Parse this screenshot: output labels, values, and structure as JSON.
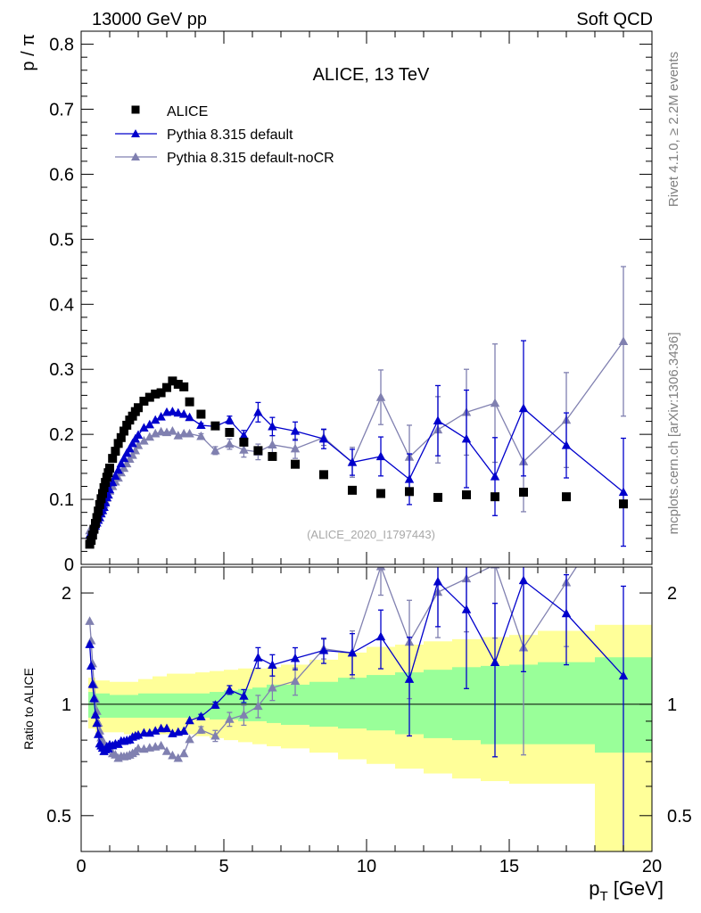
{
  "header": {
    "left": "13000 GeV pp",
    "right": "Soft QCD"
  },
  "side_text": {
    "rivet": "Rivet 4.1.0, ≥ 2.2M events",
    "mcplots": "mcplots.cern.ch [arXiv:1306.3436]"
  },
  "chart_data": {
    "type": "scatter",
    "title": "ALICE, 13 TeV",
    "reference_id": "(ALICE_2020_I1797443)",
    "ylabel": "p / π",
    "ratio_ylabel": "Ratio to ALICE",
    "xlabel": "p",
    "xlabel_sub": "T",
    "xlabel_unit": " [GeV]",
    "xlim": [
      0,
      20
    ],
    "ylim": [
      0,
      0.82
    ],
    "ratio_ylim": [
      0.4,
      2.35
    ],
    "ratio_log": true,
    "x_ticks": [
      {
        "v": 0,
        "label": "0"
      },
      {
        "v": 5,
        "label": "5"
      },
      {
        "v": 10,
        "label": "10"
      },
      {
        "v": 15,
        "label": "15"
      },
      {
        "v": 20,
        "label": "20"
      }
    ],
    "y_ticks": [
      {
        "v": 0,
        "label": "0"
      },
      {
        "v": 0.1,
        "label": "0.1"
      },
      {
        "v": 0.2,
        "label": "0.2"
      },
      {
        "v": 0.3,
        "label": "0.3"
      },
      {
        "v": 0.4,
        "label": "0.4"
      },
      {
        "v": 0.5,
        "label": "0.5"
      },
      {
        "v": 0.6,
        "label": "0.6"
      },
      {
        "v": 0.7,
        "label": "0.7"
      },
      {
        "v": 0.8,
        "label": "0.8"
      }
    ],
    "ratio_ticks": [
      {
        "v": 0.5,
        "label": "0.5"
      },
      {
        "v": 1,
        "label": "1"
      },
      {
        "v": 2,
        "label": "2"
      }
    ],
    "legend": [
      "ALICE",
      "Pythia 8.315 default",
      "Pythia 8.315 default-noCR"
    ],
    "colors": {
      "data": "#000000",
      "default": "#0000cc",
      "nocr": "#8080b0",
      "band_inner": "#99ff99",
      "band_outer": "#ffff99"
    },
    "x": [
      0.3,
      0.35,
      0.4,
      0.45,
      0.5,
      0.55,
      0.6,
      0.65,
      0.7,
      0.75,
      0.8,
      0.85,
      0.9,
      0.95,
      1.0,
      1.1,
      1.2,
      1.3,
      1.4,
      1.5,
      1.6,
      1.7,
      1.8,
      1.9,
      2.0,
      2.2,
      2.4,
      2.6,
      2.8,
      3.0,
      3.2,
      3.4,
      3.6,
      3.8,
      4.2,
      4.7,
      5.2,
      5.7,
      6.2,
      6.7,
      7.5,
      8.5,
      9.5,
      10.5,
      11.5,
      12.5,
      13.5,
      14.5,
      15.5,
      17.0,
      19.0
    ],
    "series": [
      {
        "name": "ALICE",
        "values": [
          0.031,
          0.037,
          0.045,
          0.054,
          0.063,
          0.072,
          0.082,
          0.092,
          0.101,
          0.109,
          0.118,
          0.126,
          0.134,
          0.141,
          0.148,
          0.163,
          0.174,
          0.186,
          0.195,
          0.205,
          0.214,
          0.222,
          0.228,
          0.235,
          0.241,
          0.251,
          0.257,
          0.262,
          0.264,
          0.272,
          0.282,
          0.277,
          0.273,
          0.25,
          0.231,
          0.213,
          0.203,
          0.188,
          0.175,
          0.166,
          0.154,
          0.138,
          0.114,
          0.109,
          0.112,
          0.103,
          0.107,
          0.104,
          0.111,
          0.104,
          0.093
        ]
      },
      {
        "name": "Pythia 8.315 default",
        "values": [
          0.045,
          0.047,
          0.051,
          0.056,
          0.059,
          0.064,
          0.068,
          0.072,
          0.078,
          0.083,
          0.088,
          0.095,
          0.103,
          0.107,
          0.115,
          0.126,
          0.136,
          0.145,
          0.155,
          0.163,
          0.171,
          0.178,
          0.186,
          0.193,
          0.199,
          0.21,
          0.215,
          0.222,
          0.227,
          0.234,
          0.235,
          0.233,
          0.231,
          0.226,
          0.214,
          0.212,
          0.222,
          0.198,
          0.234,
          0.212,
          0.205,
          0.193,
          0.157,
          0.166,
          0.131,
          0.221,
          0.193,
          0.135,
          0.24,
          0.183,
          0.111
        ],
        "errors": [
          0,
          0,
          0,
          0,
          0,
          0,
          0,
          0,
          0,
          0,
          0,
          0,
          0,
          0,
          0,
          0,
          0,
          0,
          0,
          0,
          0,
          0,
          0,
          0,
          0,
          0,
          0,
          0,
          0,
          0,
          0,
          0,
          0,
          0,
          0.003,
          0.004,
          0.006,
          0.008,
          0.015,
          0.014,
          0.014,
          0.015,
          0.02,
          0.03,
          0.039,
          0.054,
          0.075,
          0.06,
          0.104,
          0.05,
          0.083
        ]
      },
      {
        "name": "Pythia 8.315 default-noCR",
        "values": [
          0.052,
          0.055,
          0.058,
          0.061,
          0.065,
          0.069,
          0.073,
          0.078,
          0.082,
          0.087,
          0.092,
          0.097,
          0.102,
          0.107,
          0.113,
          0.12,
          0.127,
          0.133,
          0.141,
          0.148,
          0.155,
          0.162,
          0.168,
          0.175,
          0.183,
          0.19,
          0.196,
          0.201,
          0.204,
          0.203,
          0.205,
          0.198,
          0.201,
          0.201,
          0.197,
          0.175,
          0.185,
          0.176,
          0.173,
          0.184,
          0.178,
          0.195,
          0.157,
          0.257,
          0.165,
          0.207,
          0.234,
          0.248,
          0.158,
          0.222,
          0.343
        ],
        "errors": [
          0,
          0,
          0,
          0,
          0,
          0,
          0,
          0,
          0,
          0,
          0,
          0,
          0,
          0,
          0,
          0,
          0,
          0,
          0,
          0,
          0,
          0,
          0,
          0,
          0,
          0,
          0,
          0,
          0,
          0,
          0,
          0,
          0,
          0,
          0.004,
          0.006,
          0.008,
          0.011,
          0.012,
          0.014,
          0.015,
          0.012,
          0.023,
          0.042,
          0.049,
          0.051,
          0.066,
          0.091,
          0.077,
          0.073,
          0.115
        ]
      }
    ],
    "bands": {
      "edges": [
        0.25,
        0.5,
        1.0,
        1.5,
        2.0,
        2.5,
        3.0,
        4.0,
        4.5,
        5.0,
        5.5,
        6.0,
        6.5,
        7.0,
        8.0,
        9.0,
        10.0,
        11.0,
        12.0,
        13.0,
        14.0,
        15.0,
        16.0,
        18.0,
        20.0
      ],
      "inner_low": [
        0.92,
        0.92,
        0.92,
        0.92,
        0.92,
        0.92,
        0.92,
        0.92,
        0.91,
        0.91,
        0.9,
        0.9,
        0.89,
        0.88,
        0.87,
        0.86,
        0.85,
        0.83,
        0.81,
        0.8,
        0.78,
        0.78,
        0.78,
        0.74
      ],
      "inner_high": [
        1.08,
        1.07,
        1.06,
        1.06,
        1.07,
        1.07,
        1.07,
        1.07,
        1.08,
        1.09,
        1.1,
        1.11,
        1.13,
        1.13,
        1.15,
        1.18,
        1.2,
        1.22,
        1.24,
        1.26,
        1.27,
        1.28,
        1.3,
        1.34
      ],
      "outer_low": [
        0.86,
        0.84,
        0.84,
        0.83,
        0.83,
        0.83,
        0.83,
        0.82,
        0.81,
        0.8,
        0.79,
        0.78,
        0.77,
        0.76,
        0.74,
        0.71,
        0.69,
        0.67,
        0.65,
        0.63,
        0.62,
        0.61,
        0.61,
        0.37
      ],
      "outer_high": [
        1.18,
        1.16,
        1.15,
        1.15,
        1.17,
        1.19,
        1.21,
        1.22,
        1.23,
        1.24,
        1.25,
        1.25,
        1.26,
        1.28,
        1.32,
        1.38,
        1.43,
        1.45,
        1.48,
        1.5,
        1.52,
        1.54,
        1.58,
        1.64
      ]
    }
  }
}
